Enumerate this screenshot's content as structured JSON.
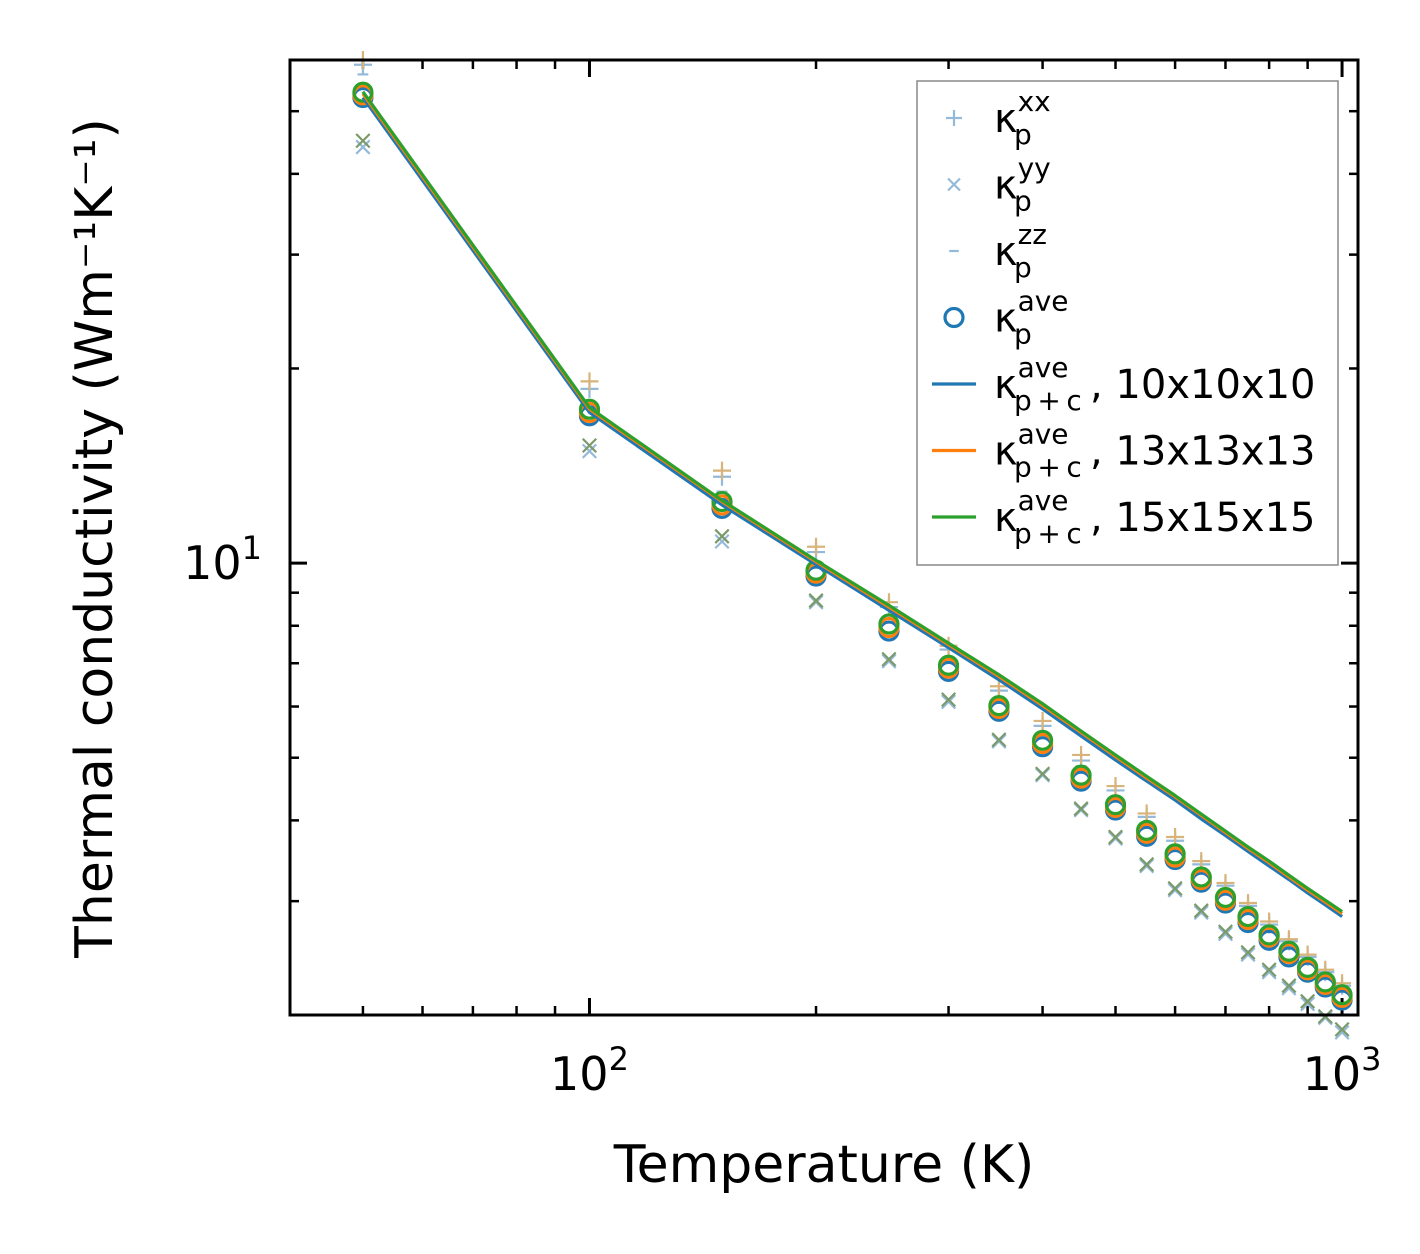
{
  "chart_data": {
    "type": "scatter",
    "x_scale": "log",
    "y_scale": "log",
    "xlim": [
      40,
      1050
    ],
    "ylim": [
      2.0,
      60
    ],
    "xlabel": "Temperature (K)",
    "ylabel": "Thermal conductivity (Wm⁻¹K⁻¹)",
    "x_ticks": [
      {
        "base": "10",
        "exp": "2",
        "value": 100
      },
      {
        "base": "10",
        "exp": "3",
        "value": 1000
      }
    ],
    "y_ticks": [
      {
        "base": "10",
        "exp": "1",
        "value": 10
      }
    ],
    "legend_position": "top-right",
    "x": [
      50,
      100,
      150,
      200,
      250,
      300,
      350,
      400,
      450,
      500,
      550,
      600,
      650,
      700,
      750,
      800,
      850,
      900,
      950,
      1000
    ],
    "series": [
      {
        "name": "κp xx",
        "label": {
          "base": "κ",
          "sub": "p",
          "sup": "xx",
          "suffix": ""
        },
        "marker": "plus",
        "color": "#94b9d9",
        "values": [
          59,
          18.6,
          13.6,
          10.4,
          8.55,
          7.35,
          6.35,
          5.6,
          4.95,
          4.45,
          4.05,
          3.72,
          3.42,
          3.17,
          2.95,
          2.76,
          2.6,
          2.46,
          2.33,
          2.22
        ]
      },
      {
        "name": "κp yy",
        "label": {
          "base": "κ",
          "sub": "p",
          "sup": "yy",
          "suffix": ""
        },
        "marker": "x",
        "color": "#94b9d9",
        "values": [
          44,
          14.9,
          10.8,
          8.7,
          7.05,
          6.1,
          5.3,
          4.7,
          4.15,
          3.75,
          3.4,
          3.12,
          2.88,
          2.67,
          2.48,
          2.33,
          2.2,
          2.08,
          1.98,
          1.88
        ]
      },
      {
        "name": "κp zz",
        "label": {
          "base": "κ",
          "sub": "p",
          "sup": "zz",
          "suffix": ""
        },
        "marker": "dash",
        "color": "#94b9d9",
        "values": [
          57,
          17.8,
          12.9,
          9.9,
          8.2,
          7.1,
          6.15,
          5.45,
          4.85,
          4.35,
          3.95,
          3.64,
          3.35,
          3.1,
          2.9,
          2.72,
          2.56,
          2.42,
          2.29,
          2.18
        ]
      },
      {
        "name": "κp ave",
        "label": {
          "base": "κ",
          "sub": "p",
          "sup": "ave",
          "suffix": ""
        },
        "marker": "circle",
        "color": "#1f77b4",
        "values": [
          52.5,
          16.9,
          12.15,
          9.55,
          7.85,
          6.8,
          5.9,
          5.2,
          4.6,
          4.15,
          3.78,
          3.48,
          3.21,
          2.98,
          2.78,
          2.61,
          2.46,
          2.33,
          2.21,
          2.11
        ]
      },
      {
        "name": "κp+c ave, 10x10x10",
        "label": {
          "base": "κ",
          "sub": "p + c",
          "sup": "ave",
          "suffix": ", 10x10x10"
        },
        "marker": "line",
        "color": "#1f77b4",
        "values": [
          52.5,
          17.1,
          12.3,
          9.95,
          8.45,
          7.4,
          6.6,
          5.95,
          5.4,
          4.96,
          4.6,
          4.3,
          4.02,
          3.79,
          3.58,
          3.4,
          3.24,
          3.09,
          2.96,
          2.84
        ]
      },
      {
        "name": "κp+c ave, 13x13x13",
        "label": {
          "base": "κ",
          "sub": "p + c",
          "sup": "ave",
          "suffix": ", 13x13x13"
        },
        "marker": "line",
        "color": "#ff7f0e",
        "values": [
          53.2,
          17.3,
          12.45,
          10.05,
          8.55,
          7.48,
          6.68,
          6.02,
          5.47,
          5.02,
          4.65,
          4.35,
          4.07,
          3.83,
          3.62,
          3.44,
          3.27,
          3.12,
          2.99,
          2.87
        ]
      },
      {
        "name": "κp+c ave, 15x15x15",
        "label": {
          "base": "κ",
          "sub": "p + c",
          "sup": "ave",
          "suffix": ", 15x15x15"
        },
        "marker": "line",
        "color": "#2ca02c",
        "values": [
          53.6,
          17.4,
          12.5,
          10.1,
          8.6,
          7.52,
          6.72,
          6.06,
          5.5,
          5.05,
          4.68,
          4.37,
          4.09,
          3.85,
          3.64,
          3.46,
          3.29,
          3.14,
          3.01,
          2.89
        ]
      }
    ],
    "overlay_markers": [
      {
        "marker": "plus",
        "color": "#d9b47a",
        "values": [
          60,
          19.1,
          13.9,
          10.6,
          8.7,
          7.45,
          6.45,
          5.7,
          5.05,
          4.52,
          4.1,
          3.77,
          3.46,
          3.2,
          2.98,
          2.79,
          2.62,
          2.48,
          2.35,
          2.24
        ]
      },
      {
        "marker": "x",
        "color": "#7a9a6a",
        "values": [
          45,
          15.2,
          11.0,
          8.75,
          7.1,
          6.15,
          5.33,
          4.72,
          4.17,
          3.77,
          3.42,
          3.14,
          2.9,
          2.69,
          2.5,
          2.35,
          2.22,
          2.1,
          1.99,
          1.9
        ]
      },
      {
        "marker": "circle",
        "color": "#ff7f0e",
        "values": [
          53.0,
          17.1,
          12.3,
          9.65,
          7.95,
          6.88,
          5.96,
          5.26,
          4.65,
          4.19,
          3.82,
          3.51,
          3.24,
          3.01,
          2.81,
          2.64,
          2.49,
          2.35,
          2.23,
          2.13
        ]
      },
      {
        "marker": "circle",
        "color": "#2ca02c",
        "values": [
          53.5,
          17.3,
          12.45,
          9.75,
          8.05,
          6.95,
          6.02,
          5.32,
          4.7,
          4.23,
          3.86,
          3.55,
          3.27,
          3.04,
          2.84,
          2.66,
          2.51,
          2.37,
          2.25,
          2.15
        ]
      }
    ]
  }
}
